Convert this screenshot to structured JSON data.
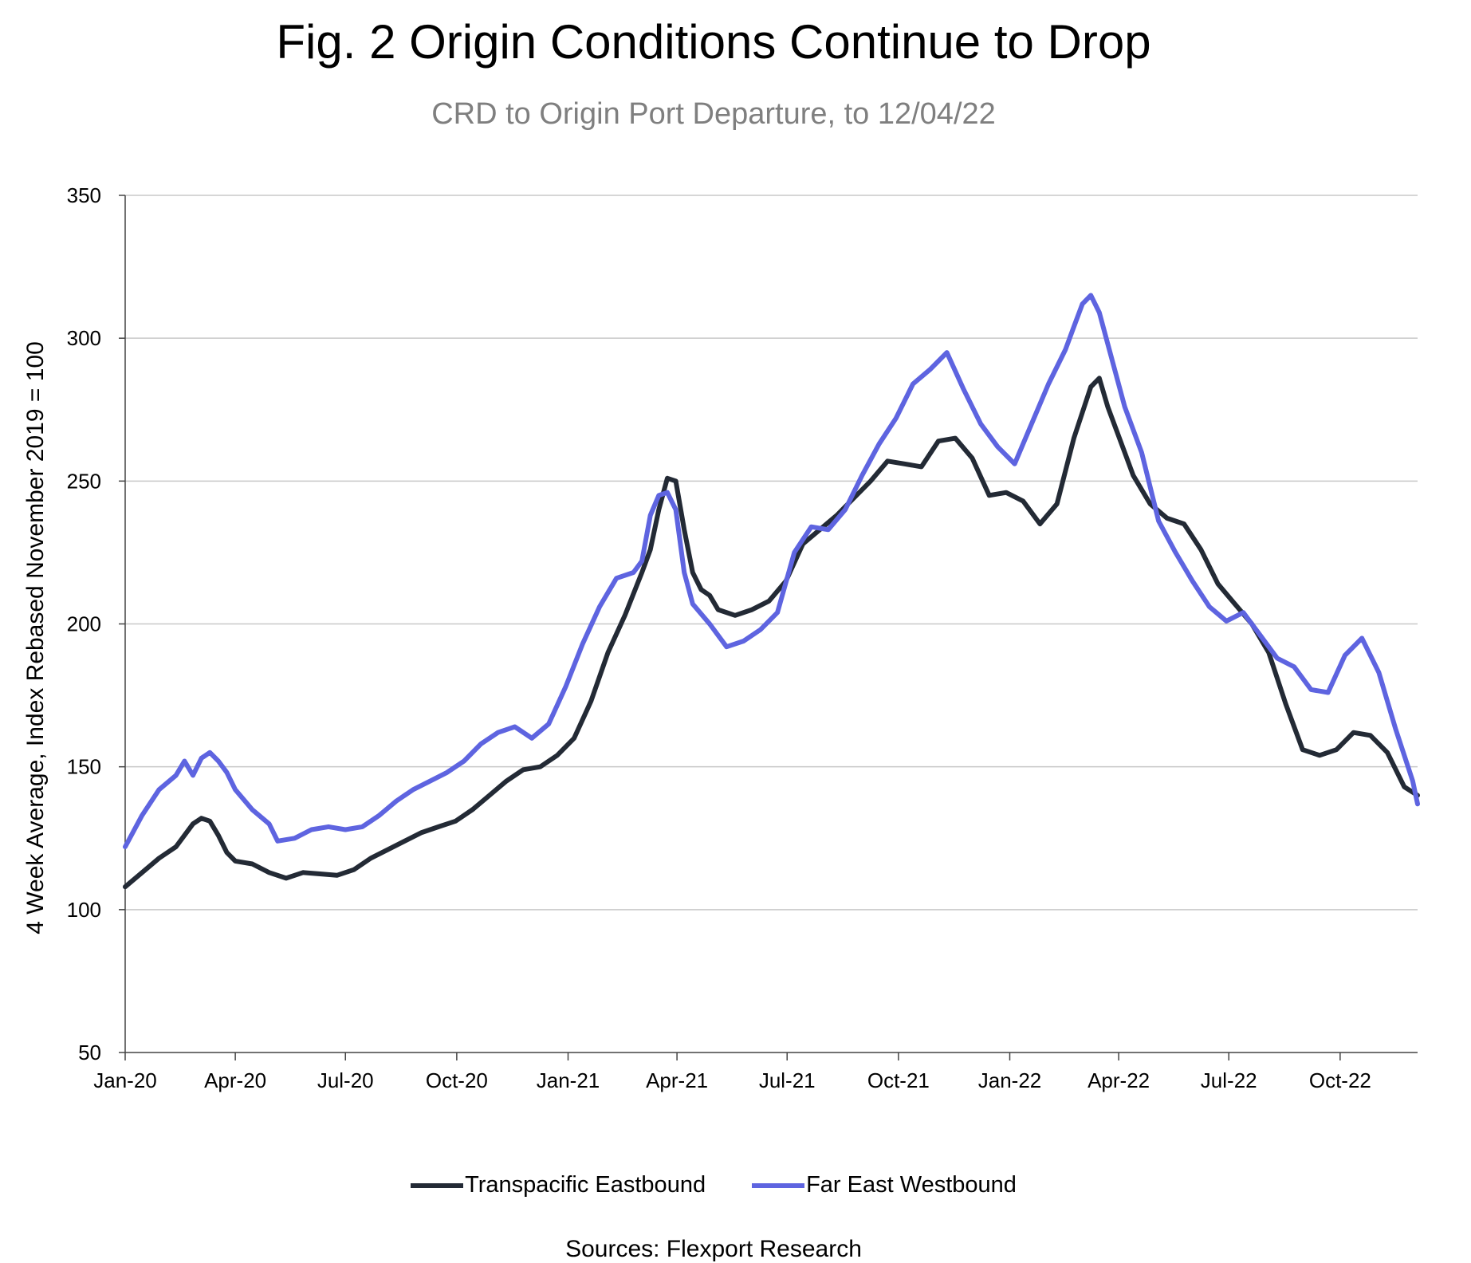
{
  "chart_data": {
    "type": "line",
    "title": "Fig. 2 Origin Conditions Continue to Drop",
    "subtitle": "CRD to Origin Port Departure, to 12/04/22",
    "ylabel": "4 Week Average, Index Rebased November 2019 = 100",
    "xlabel": "",
    "ylim": [
      50,
      350
    ],
    "yticks": [
      50,
      100,
      150,
      200,
      250,
      300,
      350
    ],
    "xlim": [
      "2020-01-01",
      "2022-12-04"
    ],
    "xticks": [
      "Jan-20",
      "Apr-20",
      "Jul-20",
      "Oct-20",
      "Jan-21",
      "Apr-21",
      "Jul-21",
      "Oct-21",
      "Jan-22",
      "Apr-22",
      "Jul-22",
      "Oct-22"
    ],
    "grid": "horizontal",
    "legend_position": "bottom",
    "source": "Sources: Flexport Research",
    "series": [
      {
        "name": "Transpacific Eastbound",
        "color": "#232a35",
        "points": [
          [
            "2020-01-01",
            108
          ],
          [
            "2020-01-15",
            113
          ],
          [
            "2020-01-29",
            118
          ],
          [
            "2020-02-12",
            122
          ],
          [
            "2020-02-26",
            130
          ],
          [
            "2020-03-04",
            132
          ],
          [
            "2020-03-11",
            131
          ],
          [
            "2020-03-18",
            126
          ],
          [
            "2020-03-25",
            120
          ],
          [
            "2020-04-01",
            117
          ],
          [
            "2020-04-15",
            116
          ],
          [
            "2020-04-29",
            113
          ],
          [
            "2020-05-13",
            111
          ],
          [
            "2020-05-27",
            113
          ],
          [
            "2020-06-10",
            112.5
          ],
          [
            "2020-06-24",
            112
          ],
          [
            "2020-07-08",
            114
          ],
          [
            "2020-07-22",
            118
          ],
          [
            "2020-08-05",
            121
          ],
          [
            "2020-08-19",
            124
          ],
          [
            "2020-09-02",
            127
          ],
          [
            "2020-09-16",
            129
          ],
          [
            "2020-09-30",
            131
          ],
          [
            "2020-10-14",
            135
          ],
          [
            "2020-10-28",
            140
          ],
          [
            "2020-11-11",
            145
          ],
          [
            "2020-11-25",
            149
          ],
          [
            "2020-12-09",
            150
          ],
          [
            "2020-12-23",
            154
          ],
          [
            "2021-01-06",
            160
          ],
          [
            "2021-01-20",
            173
          ],
          [
            "2021-02-03",
            190
          ],
          [
            "2021-02-17",
            203
          ],
          [
            "2021-03-03",
            218
          ],
          [
            "2021-03-10",
            226
          ],
          [
            "2021-03-17",
            240
          ],
          [
            "2021-03-24",
            251
          ],
          [
            "2021-03-31",
            250
          ],
          [
            "2021-04-07",
            233
          ],
          [
            "2021-04-14",
            218
          ],
          [
            "2021-04-21",
            212
          ],
          [
            "2021-04-28",
            210
          ],
          [
            "2021-05-05",
            205
          ],
          [
            "2021-05-19",
            203
          ],
          [
            "2021-06-02",
            205
          ],
          [
            "2021-06-16",
            208
          ],
          [
            "2021-06-30",
            215
          ],
          [
            "2021-07-14",
            228
          ],
          [
            "2021-07-28",
            233
          ],
          [
            "2021-08-11",
            238
          ],
          [
            "2021-08-25",
            244
          ],
          [
            "2021-09-08",
            250
          ],
          [
            "2021-09-22",
            257
          ],
          [
            "2021-10-06",
            256
          ],
          [
            "2021-10-20",
            255
          ],
          [
            "2021-11-03",
            264
          ],
          [
            "2021-11-17",
            265
          ],
          [
            "2021-12-01",
            258
          ],
          [
            "2021-12-15",
            245
          ],
          [
            "2021-12-29",
            246
          ],
          [
            "2022-01-12",
            243
          ],
          [
            "2022-01-26",
            235
          ],
          [
            "2022-02-09",
            242
          ],
          [
            "2022-02-23",
            265
          ],
          [
            "2022-03-09",
            283
          ],
          [
            "2022-03-16",
            286
          ],
          [
            "2022-03-23",
            276
          ],
          [
            "2022-04-06",
            260
          ],
          [
            "2022-04-13",
            252
          ],
          [
            "2022-04-27",
            242
          ],
          [
            "2022-05-11",
            237
          ],
          [
            "2022-05-25",
            235
          ],
          [
            "2022-06-08",
            226
          ],
          [
            "2022-06-22",
            214
          ],
          [
            "2022-07-06",
            207
          ],
          [
            "2022-07-20",
            200
          ],
          [
            "2022-08-03",
            190
          ],
          [
            "2022-08-17",
            172
          ],
          [
            "2022-08-31",
            156
          ],
          [
            "2022-09-14",
            154
          ],
          [
            "2022-09-28",
            156
          ],
          [
            "2022-10-12",
            162
          ],
          [
            "2022-10-26",
            161
          ],
          [
            "2022-11-09",
            155
          ],
          [
            "2022-11-23",
            143
          ],
          [
            "2022-12-04",
            140
          ]
        ]
      },
      {
        "name": "Far East Westbound",
        "color": "#5e64e0",
        "points": [
          [
            "2020-01-01",
            122
          ],
          [
            "2020-01-15",
            133
          ],
          [
            "2020-01-29",
            142
          ],
          [
            "2020-02-12",
            147
          ],
          [
            "2020-02-19",
            152
          ],
          [
            "2020-02-26",
            147
          ],
          [
            "2020-03-04",
            153
          ],
          [
            "2020-03-11",
            155
          ],
          [
            "2020-03-18",
            152
          ],
          [
            "2020-03-25",
            148
          ],
          [
            "2020-04-01",
            142
          ],
          [
            "2020-04-15",
            135
          ],
          [
            "2020-04-29",
            130
          ],
          [
            "2020-05-06",
            124
          ],
          [
            "2020-05-20",
            125
          ],
          [
            "2020-06-03",
            128
          ],
          [
            "2020-06-17",
            129
          ],
          [
            "2020-07-01",
            128
          ],
          [
            "2020-07-15",
            129
          ],
          [
            "2020-07-29",
            133
          ],
          [
            "2020-08-12",
            138
          ],
          [
            "2020-08-26",
            142
          ],
          [
            "2020-09-09",
            145
          ],
          [
            "2020-09-23",
            148
          ],
          [
            "2020-10-07",
            152
          ],
          [
            "2020-10-21",
            158
          ],
          [
            "2020-11-04",
            162
          ],
          [
            "2020-11-18",
            164
          ],
          [
            "2020-12-02",
            160
          ],
          [
            "2020-12-16",
            165
          ],
          [
            "2020-12-30",
            178
          ],
          [
            "2021-01-13",
            193
          ],
          [
            "2021-01-27",
            206
          ],
          [
            "2021-02-10",
            216
          ],
          [
            "2021-02-24",
            218
          ],
          [
            "2021-03-03",
            222
          ],
          [
            "2021-03-10",
            238
          ],
          [
            "2021-03-17",
            245
          ],
          [
            "2021-03-24",
            246
          ],
          [
            "2021-03-31",
            240
          ],
          [
            "2021-04-07",
            218
          ],
          [
            "2021-04-14",
            207
          ],
          [
            "2021-04-28",
            200
          ],
          [
            "2021-05-12",
            192
          ],
          [
            "2021-05-26",
            194
          ],
          [
            "2021-06-09",
            198
          ],
          [
            "2021-06-23",
            204
          ],
          [
            "2021-07-07",
            225
          ],
          [
            "2021-07-21",
            234
          ],
          [
            "2021-08-04",
            233
          ],
          [
            "2021-08-18",
            240
          ],
          [
            "2021-09-01",
            252
          ],
          [
            "2021-09-15",
            263
          ],
          [
            "2021-09-29",
            272
          ],
          [
            "2021-10-13",
            284
          ],
          [
            "2021-10-27",
            289
          ],
          [
            "2021-11-10",
            295
          ],
          [
            "2021-11-24",
            282
          ],
          [
            "2021-12-08",
            270
          ],
          [
            "2021-12-22",
            262
          ],
          [
            "2022-01-05",
            256
          ],
          [
            "2022-01-19",
            270
          ],
          [
            "2022-02-02",
            284
          ],
          [
            "2022-02-16",
            296
          ],
          [
            "2022-02-23",
            304
          ],
          [
            "2022-03-02",
            312
          ],
          [
            "2022-03-09",
            315
          ],
          [
            "2022-03-16",
            309
          ],
          [
            "2022-03-23",
            298
          ],
          [
            "2022-04-06",
            276
          ],
          [
            "2022-04-20",
            260
          ],
          [
            "2022-05-04",
            236
          ],
          [
            "2022-05-18",
            225
          ],
          [
            "2022-06-01",
            215
          ],
          [
            "2022-06-15",
            206
          ],
          [
            "2022-06-29",
            201
          ],
          [
            "2022-07-13",
            204
          ],
          [
            "2022-07-27",
            196
          ],
          [
            "2022-08-10",
            188
          ],
          [
            "2022-08-24",
            185
          ],
          [
            "2022-09-07",
            177
          ],
          [
            "2022-09-21",
            176
          ],
          [
            "2022-10-05",
            189
          ],
          [
            "2022-10-19",
            195
          ],
          [
            "2022-11-02",
            183
          ],
          [
            "2022-11-16",
            163
          ],
          [
            "2022-11-30",
            145
          ],
          [
            "2022-12-04",
            137
          ]
        ]
      }
    ]
  }
}
